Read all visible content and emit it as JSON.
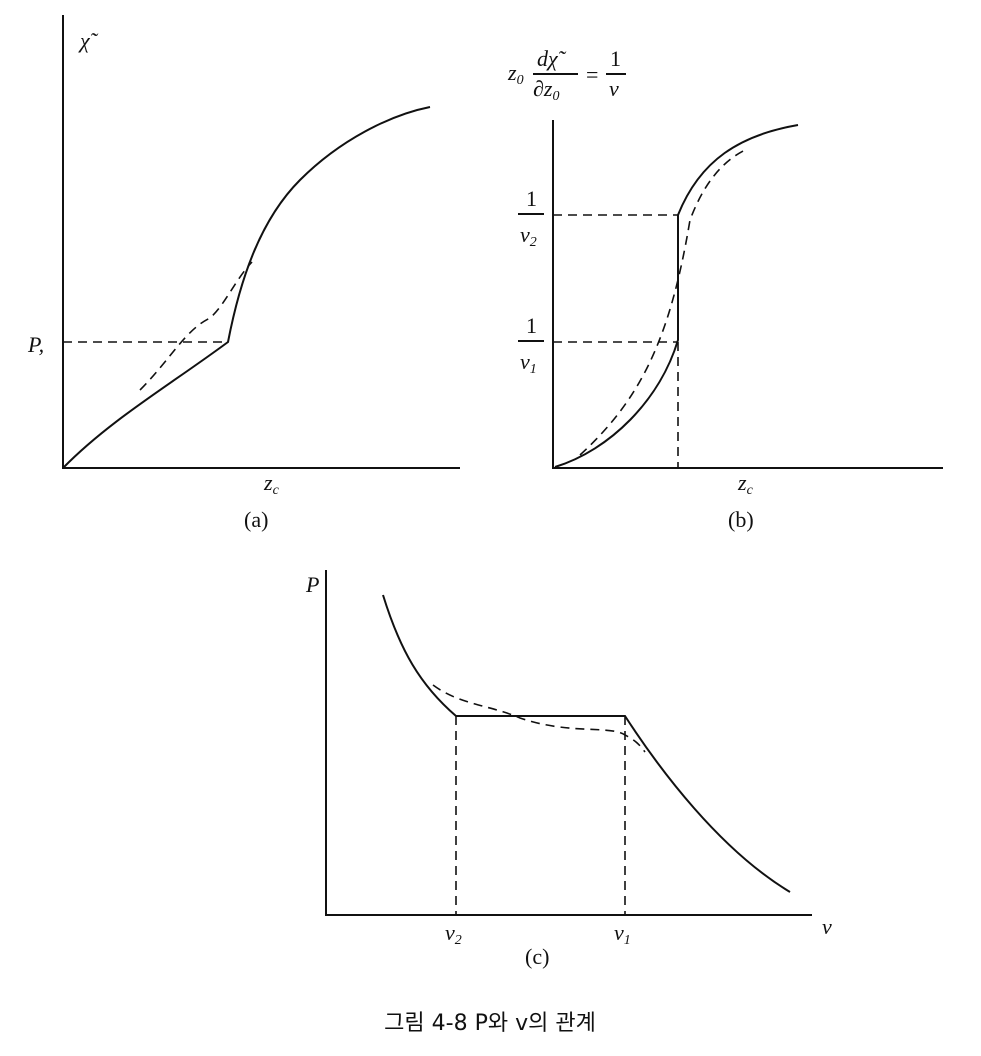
{
  "panel_a": {
    "y_label": "χ̃",
    "p_label": "P,",
    "x_label": {
      "base": "z",
      "sub": "c"
    },
    "caption": "(a)"
  },
  "panel_b": {
    "y_label": {
      "factor": {
        "base": "z",
        "sub": "0"
      },
      "numerator": "dχ̃",
      "denominator": {
        "base": "∂z",
        "sub": "0"
      },
      "equals": "=",
      "rhs_numerator": "1",
      "rhs_denominator": "v"
    },
    "level_2": {
      "numerator": "1",
      "denominator": {
        "base": "v",
        "sub": "2"
      }
    },
    "level_1": {
      "numerator": "1",
      "denominator": {
        "base": "v",
        "sub": "1"
      }
    },
    "x_label": {
      "base": "z",
      "sub": "c"
    },
    "caption": "(b)"
  },
  "panel_c": {
    "y_label": "P",
    "v2_label": {
      "base": "v",
      "sub": "2"
    },
    "v1_label": {
      "base": "v",
      "sub": "1"
    },
    "x_label": "v",
    "caption": "(c)"
  },
  "figure_caption": "그림 4-8 P와 v의 관계"
}
